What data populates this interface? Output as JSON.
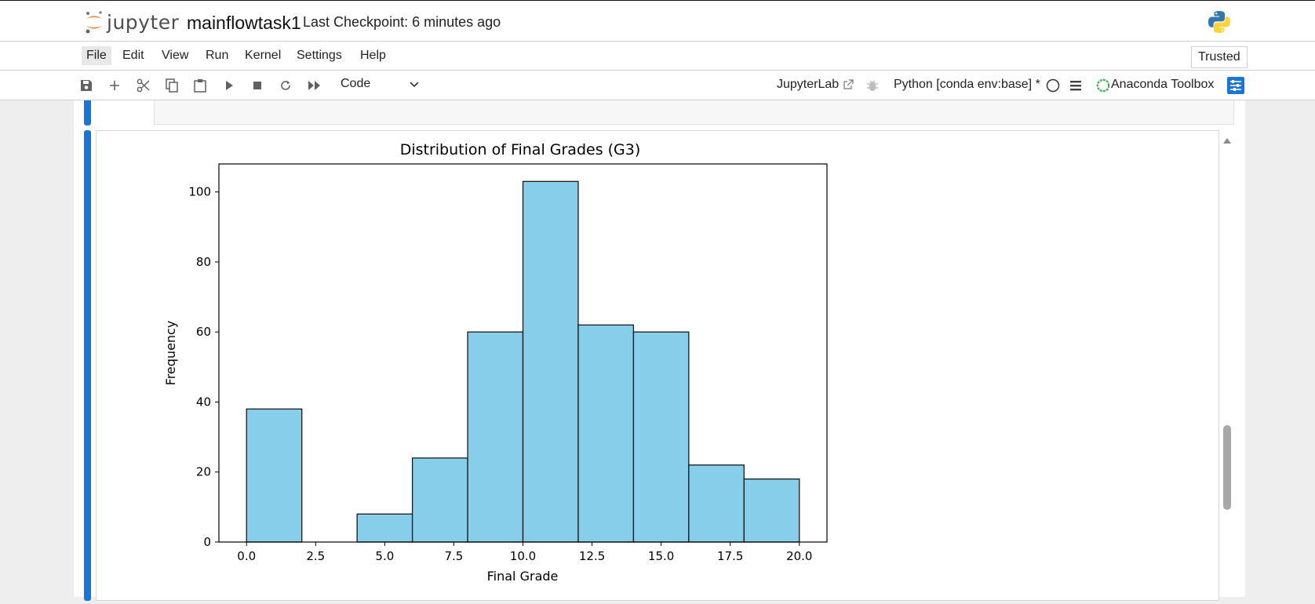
{
  "header": {
    "logo_text": "jupyter",
    "notebook_title": "mainflowtask1",
    "checkpoint": "Last Checkpoint: 6 minutes ago"
  },
  "menu": {
    "items": [
      "File",
      "Edit",
      "View",
      "Run",
      "Kernel",
      "Settings",
      "Help"
    ],
    "active": "File",
    "trusted": "Trusted"
  },
  "toolbar": {
    "cell_type": "Code",
    "jupyterlab_link": "JupyterLab",
    "kernel_name": "Python [conda env:base] *",
    "anaconda": "Anaconda Toolbox",
    "icons": [
      "save-icon",
      "add-cell-icon",
      "cut-icon",
      "copy-icon",
      "paste-icon",
      "run-icon",
      "stop-icon",
      "restart-icon",
      "run-all-icon"
    ]
  },
  "colors": {
    "bar_fill": "#87ceeb",
    "bar_edge": "#1a1a1a",
    "cell_accent": "#1976d2",
    "anaconda_green": "#43b049"
  },
  "chart_data": {
    "type": "bar",
    "title": "Distribution of Final Grades (G3)",
    "xlabel": "Final Grade",
    "ylabel": "Frequency",
    "bins": [
      [
        0,
        2
      ],
      [
        2,
        4
      ],
      [
        4,
        6
      ],
      [
        6,
        8
      ],
      [
        8,
        10
      ],
      [
        10,
        12
      ],
      [
        12,
        14
      ],
      [
        14,
        16
      ],
      [
        16,
        18
      ],
      [
        18,
        20
      ]
    ],
    "values": [
      38,
      0,
      8,
      24,
      60,
      103,
      62,
      60,
      22,
      18
    ],
    "xlim": [
      -1,
      21
    ],
    "ylim": [
      0,
      108
    ],
    "xticks": [
      0.0,
      2.5,
      5.0,
      7.5,
      10.0,
      12.5,
      15.0,
      17.5,
      20.0
    ],
    "xtick_labels": [
      "0.0",
      "2.5",
      "5.0",
      "7.5",
      "10.0",
      "12.5",
      "15.0",
      "17.5",
      "20.0"
    ],
    "yticks": [
      0,
      20,
      40,
      60,
      80,
      100
    ],
    "ytick_labels": [
      "0",
      "20",
      "40",
      "60",
      "80",
      "100"
    ],
    "grid": false,
    "legend": "none"
  }
}
